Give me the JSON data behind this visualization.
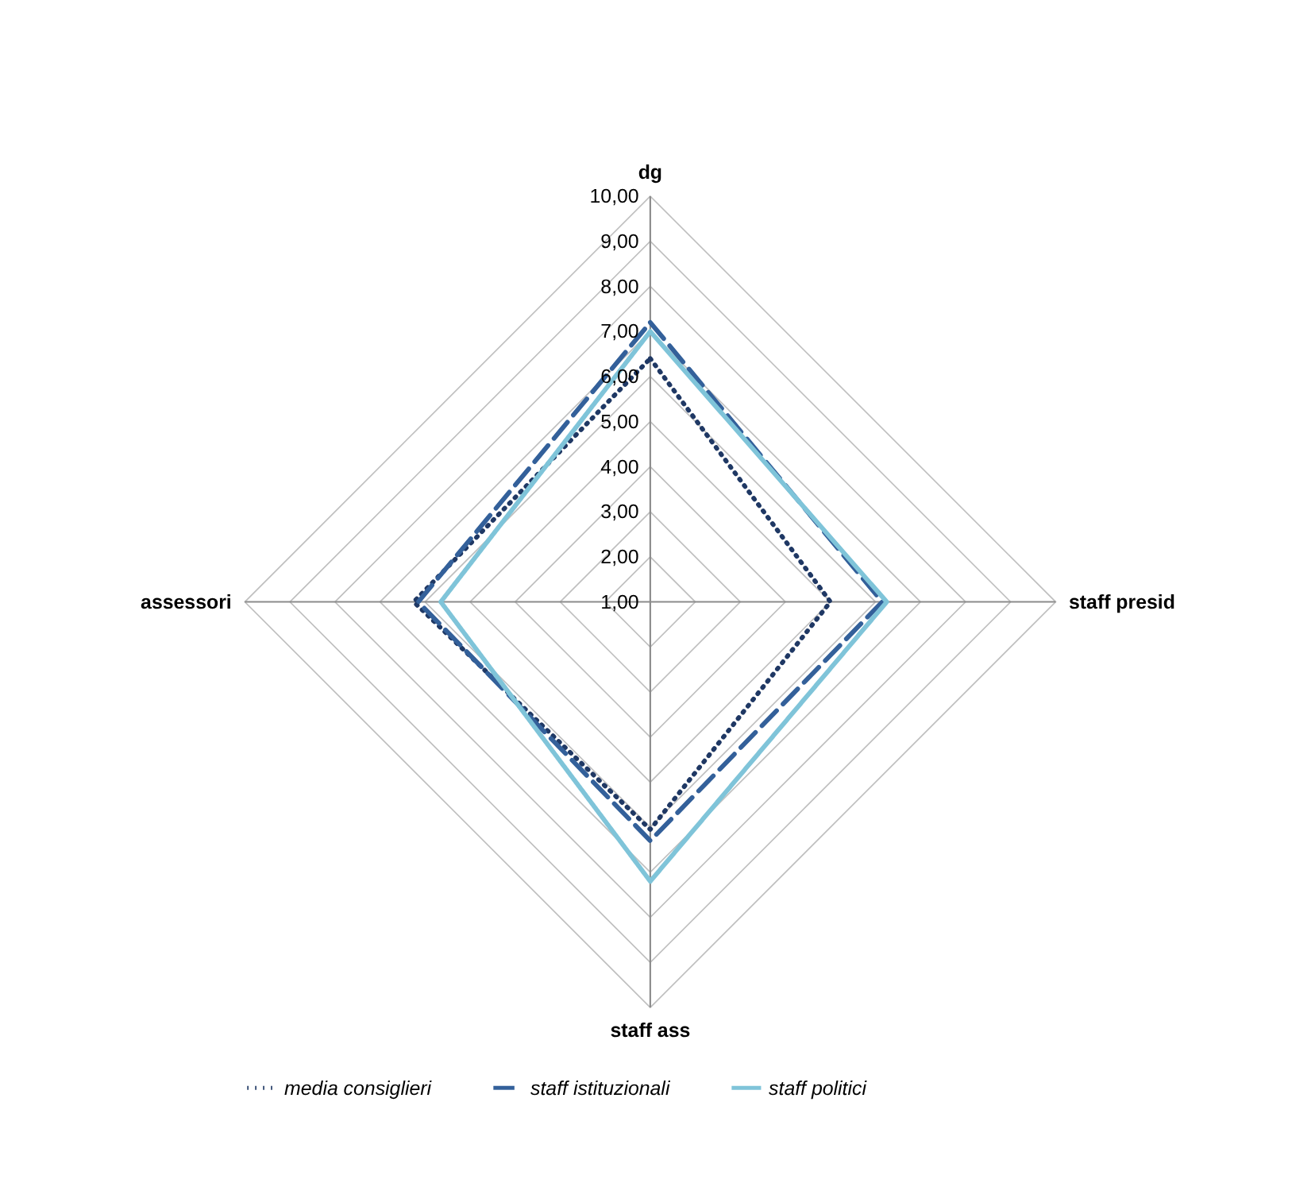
{
  "chart_data": {
    "type": "radar",
    "categories": [
      "dg",
      "staff presid",
      "staff ass",
      "assessori"
    ],
    "series": [
      {
        "name": "media consiglieri",
        "color": "#1f3864",
        "line_style": "dotted",
        "values": [
          6.4,
          5.0,
          6.05,
          6.25
        ]
      },
      {
        "name": "staff istituzionali",
        "color": "#33609a",
        "line_style": "dashed",
        "values": [
          7.2,
          6.15,
          6.3,
          6.15
        ]
      },
      {
        "name": "staff politici",
        "color": "#7fc4d9",
        "line_style": "solid",
        "values": [
          7.0,
          6.25,
          7.2,
          5.65
        ]
      }
    ],
    "ylim": [
      1,
      10
    ],
    "yticks": [
      {
        "value": 1,
        "label": "1,00"
      },
      {
        "value": 2,
        "label": "2,00"
      },
      {
        "value": 3,
        "label": "3,00"
      },
      {
        "value": 4,
        "label": "4,00"
      },
      {
        "value": 5,
        "label": "5,00"
      },
      {
        "value": 6,
        "label": "6,00"
      },
      {
        "value": 7,
        "label": "7,00"
      },
      {
        "value": 8,
        "label": "8,00"
      },
      {
        "value": 9,
        "label": "9,00"
      },
      {
        "value": 10,
        "label": "10,00"
      }
    ],
    "grid": true,
    "legend": "bottom"
  }
}
